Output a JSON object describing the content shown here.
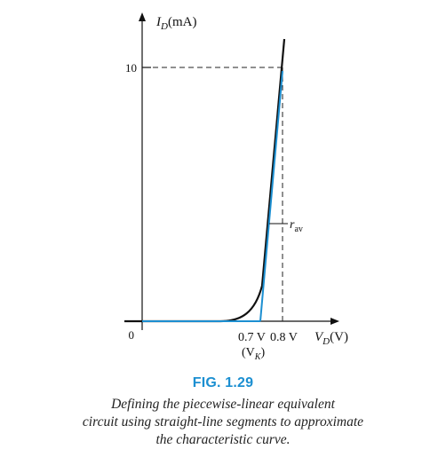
{
  "axes": {
    "y_label_main": "I",
    "y_label_sub": "D",
    "y_label_unit": "(mA)",
    "y_tick_10": "10",
    "origin_label": "0",
    "x_tick_07": "0.7 V",
    "x_tick_08": "0.8 V",
    "x_label_main": "V",
    "x_label_sub": "D",
    "x_label_unit": "(V)",
    "vk_open": "(V",
    "vk_sub": "K",
    "vk_close": ")"
  },
  "annotation": {
    "rav_main": "r",
    "rav_sub": "av"
  },
  "caption": {
    "fig_label": "FIG. 1.29",
    "line1": "Defining the piecewise-linear equivalent",
    "line2": "circuit using straight-line segments to approximate",
    "line3": "the characteristic curve."
  },
  "colors": {
    "curve": "#111111",
    "approximation": "#1c8fd1",
    "caption_label": "#1c8fd1"
  }
}
